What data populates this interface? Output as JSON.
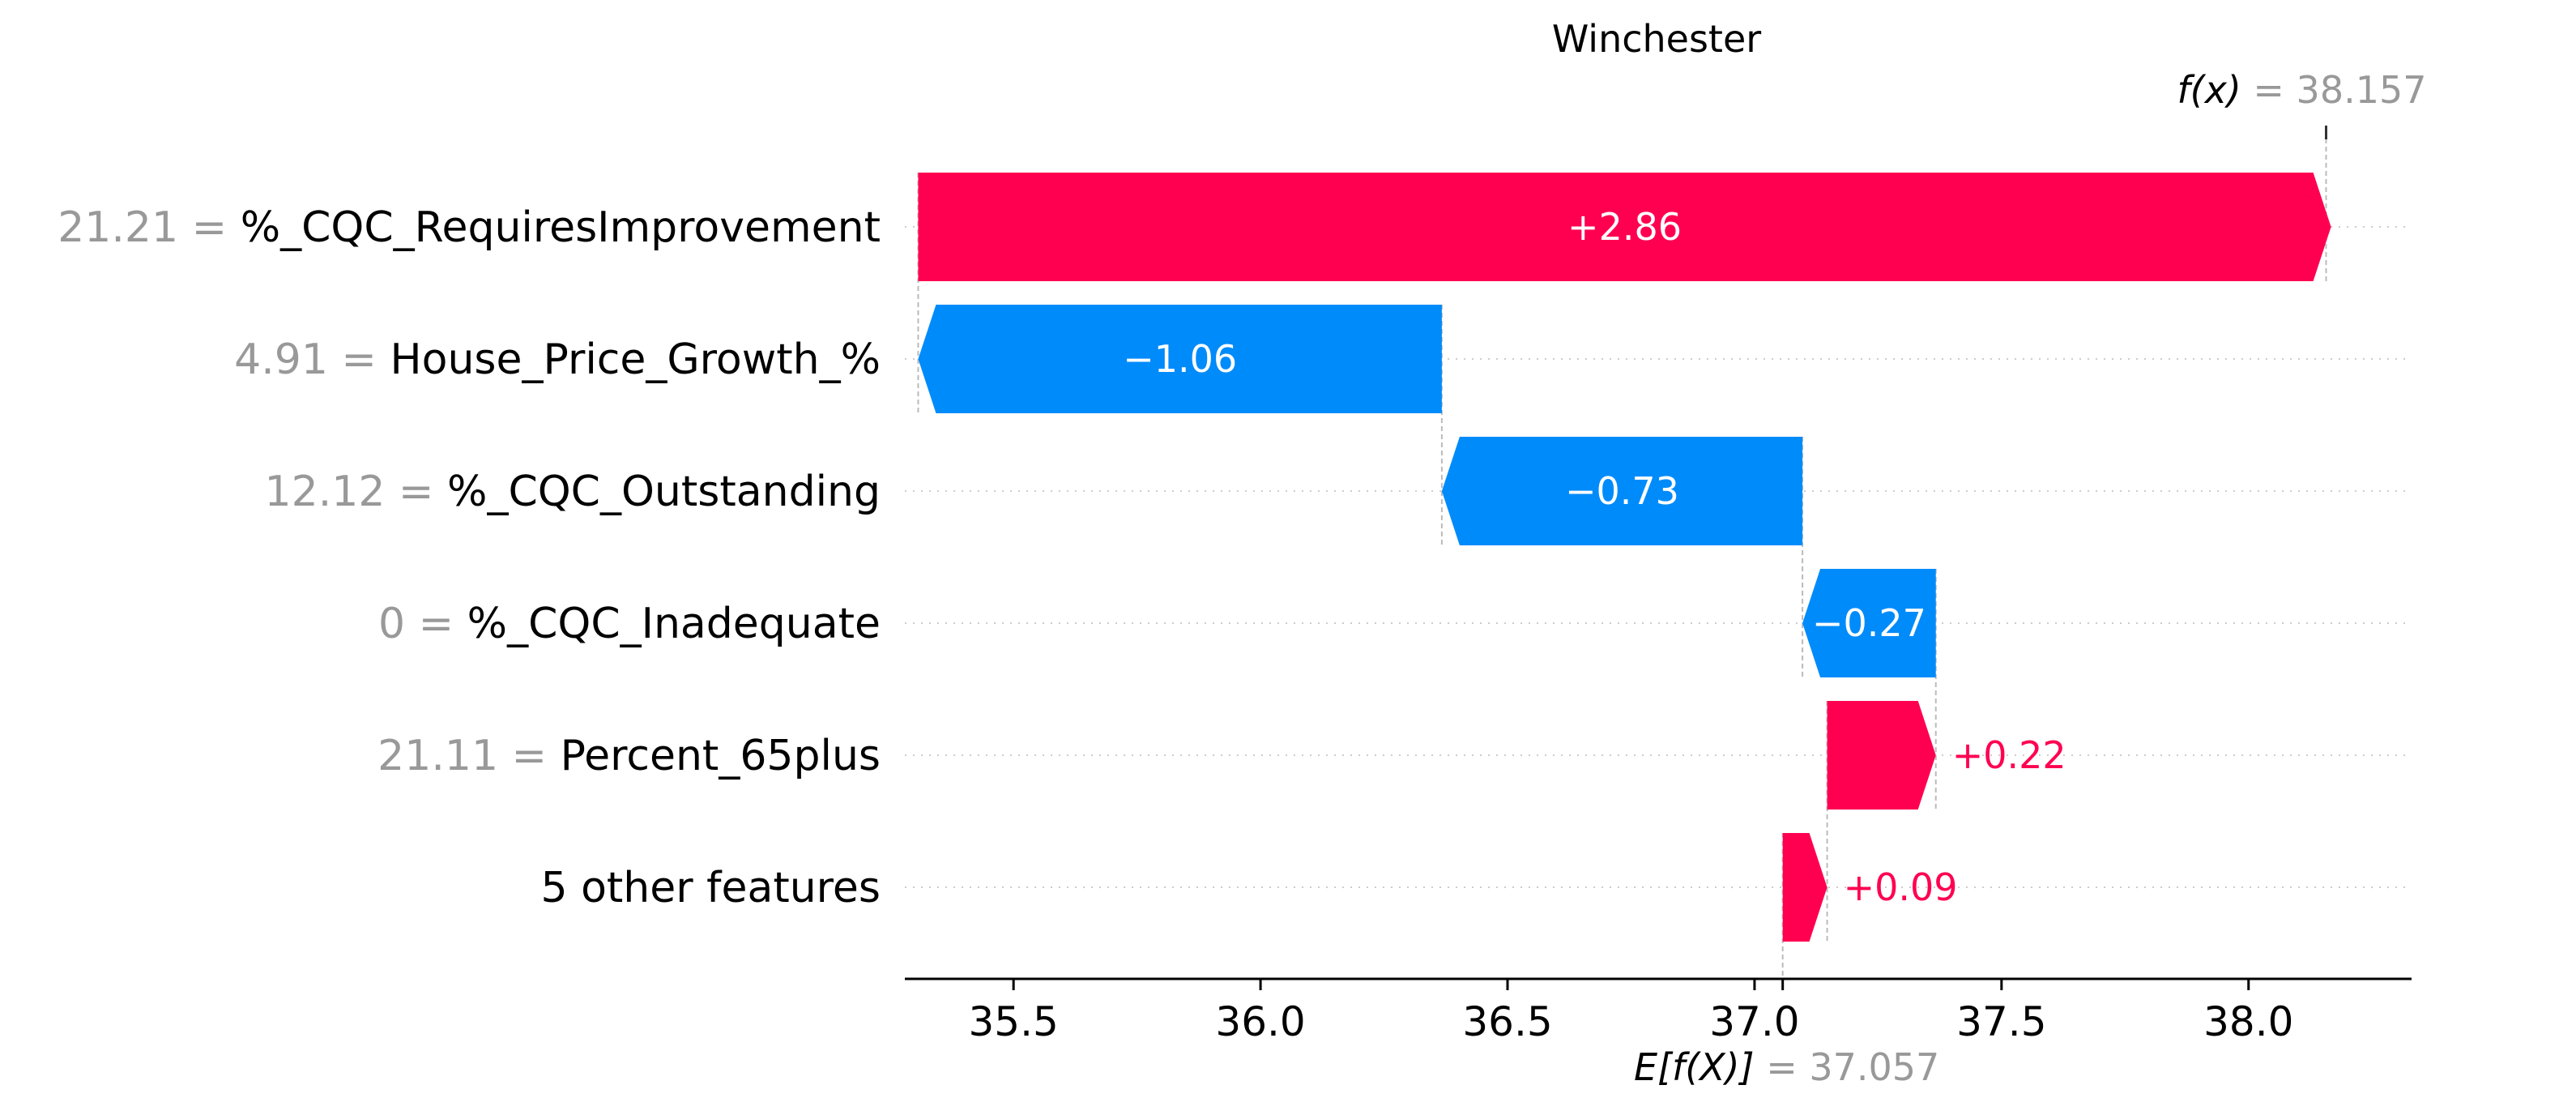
{
  "chart_data": {
    "type": "waterfall",
    "title": "Winchester",
    "base_value": 37.057,
    "output_value": 38.157,
    "base_label": "E[f(X)]",
    "base_value_label": "= 37.057",
    "output_label": "f(x)",
    "output_value_label": "= 38.157",
    "xlim": [
      35.28,
      38.33
    ],
    "x_ticks": [
      35.5,
      36.0,
      36.5,
      37.0,
      37.5,
      38.0
    ],
    "x_tick_labels": [
      "35.5",
      "36.0",
      "36.5",
      "37.0",
      "37.5",
      "38.0"
    ],
    "features": [
      {
        "value_text": "21.21 =",
        "name": "%_CQC_RequiresImprovement",
        "contribution": 2.86,
        "label": "+2.86"
      },
      {
        "value_text": "4.91 =",
        "name": "House_Price_Growth_%",
        "contribution": -1.06,
        "label": "−1.06"
      },
      {
        "value_text": "12.12 =",
        "name": "%_CQC_Outstanding",
        "contribution": -0.73,
        "label": "−0.73"
      },
      {
        "value_text": "0 =",
        "name": "%_CQC_Inadequate",
        "contribution": -0.27,
        "label": "−0.27"
      },
      {
        "value_text": "21.11 =",
        "name": "Percent_65plus",
        "contribution": 0.22,
        "label": "+0.22"
      },
      {
        "value_text": "",
        "name": "5 other features",
        "contribution": 0.09,
        "label": "+0.09"
      }
    ],
    "colors": {
      "positive": "#ff0051",
      "negative": "#008bfb"
    }
  }
}
